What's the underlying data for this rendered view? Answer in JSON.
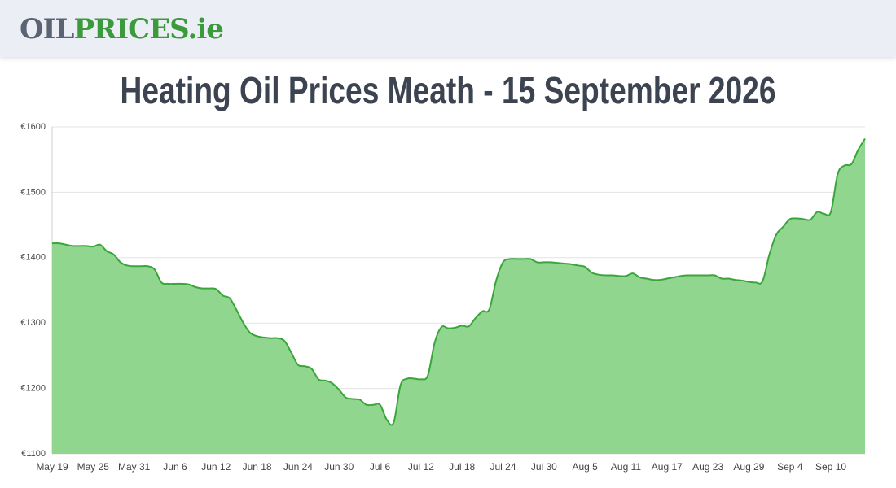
{
  "header": {
    "logo": [
      "OIL",
      "PRICES.ie"
    ]
  },
  "chart_data": {
    "type": "area",
    "title": "Heating Oil Prices Meath - 15 September 2026",
    "categories": [
      "May 19",
      null,
      null,
      null,
      null,
      null,
      "May 25",
      null,
      null,
      null,
      null,
      null,
      "May 31",
      null,
      null,
      null,
      null,
      null,
      "Jun 6",
      null,
      null,
      null,
      null,
      null,
      "Jun 12",
      null,
      null,
      null,
      null,
      null,
      "Jun 18",
      null,
      null,
      null,
      null,
      null,
      "Jun 24",
      null,
      null,
      null,
      null,
      null,
      "Jun 30",
      null,
      null,
      null,
      null,
      null,
      "Jul 6",
      null,
      null,
      null,
      null,
      null,
      "Jul 12",
      null,
      null,
      null,
      null,
      null,
      "Jul 18",
      null,
      null,
      null,
      null,
      null,
      "Jul 24",
      null,
      null,
      null,
      null,
      null,
      "Jul 30",
      null,
      null,
      null,
      null,
      null,
      "Aug 5",
      null,
      null,
      null,
      null,
      null,
      "Aug 11",
      null,
      null,
      null,
      null,
      null,
      "Aug 17",
      null,
      null,
      null,
      null,
      null,
      "Aug 23",
      null,
      null,
      null,
      null,
      null,
      "Aug 29",
      null,
      null,
      null,
      null,
      null,
      "Sep 4",
      null,
      null,
      null,
      null,
      null,
      "Sep 10",
      null,
      null,
      null,
      null,
      null
    ],
    "values": [
      1422,
      1422,
      1420,
      1418,
      1418,
      1418,
      1417,
      1420,
      1410,
      1405,
      1393,
      1388,
      1387,
      1387,
      1387,
      1382,
      1362,
      1360,
      1360,
      1360,
      1359,
      1355,
      1353,
      1353,
      1352,
      1342,
      1338,
      1320,
      1300,
      1285,
      1280,
      1278,
      1277,
      1277,
      1273,
      1255,
      1236,
      1234,
      1230,
      1214,
      1212,
      1208,
      1198,
      1186,
      1184,
      1183,
      1175,
      1175,
      1175,
      1152,
      1148,
      1205,
      1215,
      1215,
      1214,
      1220,
      1270,
      1294,
      1292,
      1293,
      1296,
      1295,
      1308,
      1318,
      1321,
      1365,
      1393,
      1398,
      1398,
      1398,
      1398,
      1393,
      1393,
      1393,
      1392,
      1391,
      1390,
      1388,
      1386,
      1377,
      1374,
      1373,
      1373,
      1372,
      1372,
      1376,
      1370,
      1368,
      1366,
      1366,
      1368,
      1370,
      1372,
      1373,
      1373,
      1373,
      1373,
      1373,
      1368,
      1368,
      1366,
      1365,
      1363,
      1362,
      1364,
      1405,
      1435,
      1447,
      1459,
      1460,
      1459,
      1458,
      1470,
      1467,
      1470,
      1528,
      1541,
      1543,
      1565,
      1582
    ],
    "color": "#3aa53a",
    "fill": "#90d68f",
    "ylim": [
      1100,
      1600
    ],
    "yticks": [
      {
        "value": 1100,
        "label": "€1100"
      },
      {
        "value": 1200,
        "label": "€1200"
      },
      {
        "value": 1300,
        "label": "€1300"
      },
      {
        "value": 1400,
        "label": "€1400"
      },
      {
        "value": 1500,
        "label": "€1500"
      },
      {
        "value": 1600,
        "label": "€1600"
      }
    ],
    "grid": true
  }
}
